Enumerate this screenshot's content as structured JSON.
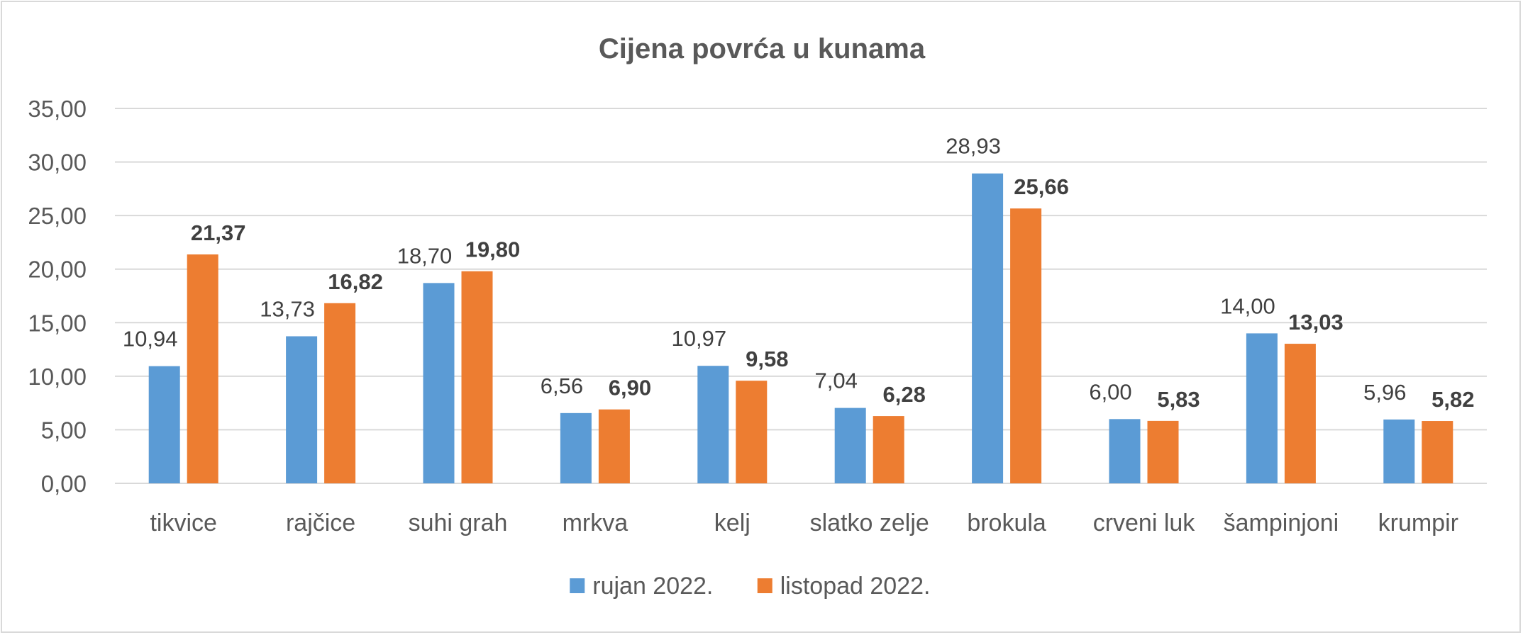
{
  "chart_data": {
    "type": "bar",
    "title": "Cijena povrća u kunama",
    "categories": [
      "tikvice",
      "rajčice",
      "suhi grah",
      "mrkva",
      "kelj",
      "slatko zelje",
      "brokula",
      "crveni luk",
      "šampinjoni",
      "krumpir"
    ],
    "series": [
      {
        "name": "rujan 2022.",
        "color": "#5b9bd5",
        "values": [
          10.94,
          13.73,
          18.7,
          6.56,
          10.97,
          7.04,
          28.93,
          6.0,
          14.0,
          5.96
        ],
        "labels": [
          "10,94",
          "13,73",
          "18,70",
          "6,56",
          "10,97",
          "7,04",
          "28,93",
          "6,00",
          "14,00",
          "5,96"
        ],
        "label_style": "normal"
      },
      {
        "name": "listopad 2022.",
        "color": "#ed7d31",
        "values": [
          21.37,
          16.82,
          19.8,
          6.9,
          9.58,
          6.28,
          25.66,
          5.83,
          13.03,
          5.82
        ],
        "labels": [
          "21,37",
          "16,82",
          "19,80",
          "6,90",
          "9,58",
          "6,28",
          "25,66",
          "5,83",
          "13,03",
          "5,82"
        ],
        "label_style": "bold"
      }
    ],
    "ylim": [
      0,
      35
    ],
    "yticks": [
      0,
      5,
      10,
      15,
      20,
      25,
      30,
      35
    ],
    "ytick_labels": [
      "0,00",
      "5,00",
      "10,00",
      "15,00",
      "20,00",
      "25,00",
      "30,00",
      "35,00"
    ],
    "grid": true,
    "gridline_color": "#d9d9d9",
    "legend_position": "bottom",
    "xlabel": "",
    "ylabel": ""
  }
}
